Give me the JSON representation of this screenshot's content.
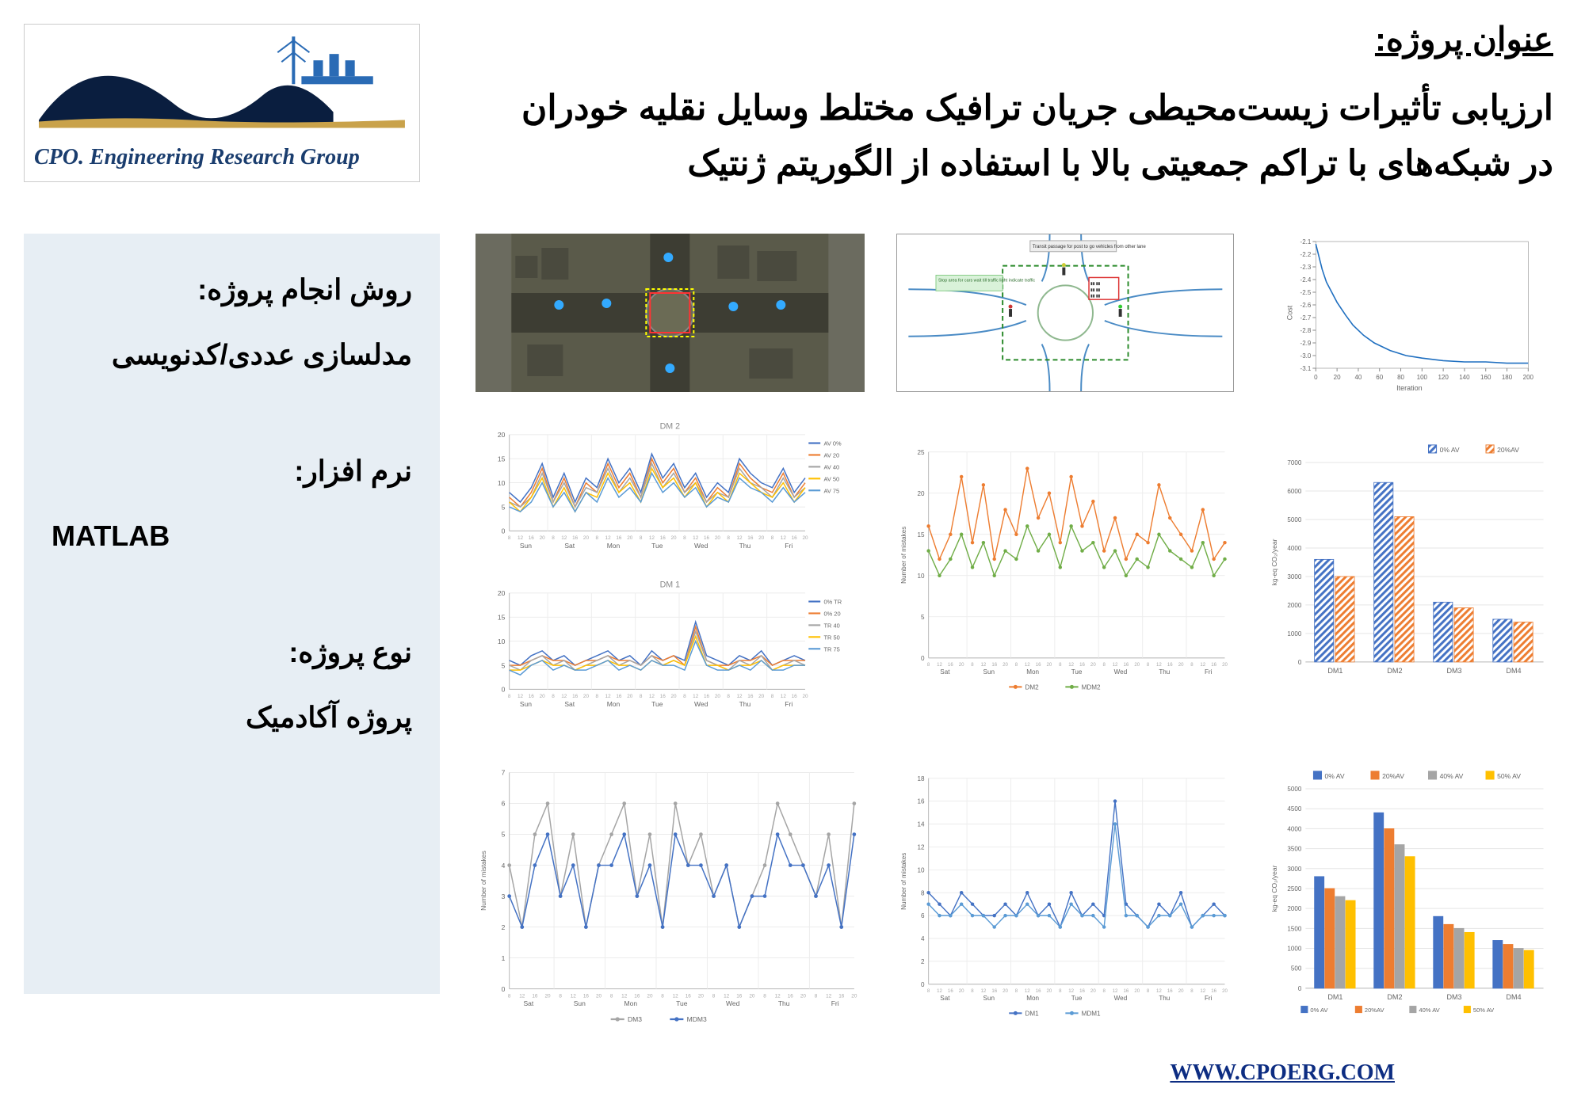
{
  "logo": {
    "text": "CPO. Engineering Research Group"
  },
  "header": {
    "label": "عنوان پروژه:",
    "line1": "ارزیابی تأثیرات زیست‌محیطی جریان ترافیک مختلط وسایل نقلیه خودران",
    "line2": "در شبکه‌های با تراکم جمعیتی بالا با استفاده از الگوریتم ژنتیک"
  },
  "sidebar": {
    "method_label": "روش انجام پروژه:",
    "method_value": "مدلسازی عددی/کدنویسی",
    "software_label": "نرم افزار:",
    "software_value": "MATLAB",
    "type_label": "نوع پروژه:",
    "type_value": "پروژه آکادمیک"
  },
  "footer": {
    "url": "WWW.CPOERG.COM"
  },
  "colors": {
    "sidebar_bg": "#e7eef4",
    "accent_blue": "#1a3d6e",
    "link_blue": "#0d2d82",
    "chart_blue": "#4472c4",
    "chart_orange": "#ed7d31",
    "chart_green": "#70ad47",
    "chart_gray": "#a5a5a5",
    "chart_yellow": "#ffc000",
    "chart_lightblue": "#5b9bd5",
    "grid": "#d9d9d9"
  },
  "cost_chart": {
    "xlim": [
      0,
      200
    ],
    "ylim": [
      -3.1,
      -2.1
    ],
    "xlabel": "Iteration",
    "ylabel": "Cost",
    "xticks": [
      0,
      20,
      40,
      60,
      80,
      100,
      120,
      140,
      160,
      180,
      200
    ],
    "yticks": [
      -3.1,
      -3.0,
      -2.9,
      -2.8,
      -2.7,
      -2.6,
      -2.5,
      -2.4,
      -2.3,
      -2.2,
      -2.1
    ],
    "curve_x": [
      0,
      3,
      6,
      10,
      15,
      20,
      28,
      35,
      45,
      55,
      70,
      85,
      100,
      120,
      140,
      160,
      180,
      200
    ],
    "curve_y": [
      -2.12,
      -2.22,
      -2.32,
      -2.42,
      -2.5,
      -2.58,
      -2.68,
      -2.76,
      -2.84,
      -2.9,
      -2.96,
      -3.0,
      -3.02,
      -3.04,
      -3.05,
      -3.05,
      -3.06,
      -3.06
    ],
    "line_color": "#1f6fc0"
  },
  "dm2_chart": {
    "title": "DM 2",
    "ylim": [
      0,
      20
    ],
    "series": [
      {
        "name": "AV 0%",
        "color": "#4472c4",
        "y": [
          8,
          6,
          9,
          14,
          7,
          12,
          6,
          11,
          9,
          15,
          10,
          13,
          8,
          16,
          11,
          14,
          9,
          12,
          7,
          10,
          8,
          15,
          12,
          10,
          9,
          13,
          8,
          11
        ]
      },
      {
        "name": "AV 20",
        "color": "#ed7d31",
        "y": [
          7,
          5,
          8,
          13,
          6,
          11,
          5,
          10,
          8,
          14,
          9,
          12,
          7,
          15,
          10,
          13,
          8,
          11,
          6,
          9,
          7,
          14,
          11,
          9,
          8,
          12,
          7,
          10
        ]
      },
      {
        "name": "AV 40",
        "color": "#a5a5a5",
        "y": [
          6,
          5,
          7,
          12,
          6,
          10,
          5,
          9,
          8,
          13,
          8,
          11,
          7,
          14,
          9,
          12,
          8,
          10,
          6,
          8,
          7,
          13,
          10,
          9,
          7,
          11,
          7,
          9
        ]
      },
      {
        "name": "AV 50",
        "color": "#ffc000",
        "y": [
          6,
          4,
          7,
          11,
          5,
          9,
          4,
          8,
          7,
          12,
          8,
          10,
          6,
          13,
          9,
          11,
          7,
          10,
          5,
          8,
          6,
          12,
          10,
          8,
          7,
          10,
          6,
          9
        ]
      },
      {
        "name": "AV 75",
        "color": "#5b9bd5",
        "y": [
          5,
          4,
          6,
          10,
          5,
          8,
          4,
          8,
          6,
          11,
          7,
          9,
          6,
          12,
          8,
          10,
          7,
          9,
          5,
          7,
          6,
          11,
          9,
          8,
          6,
          9,
          6,
          8
        ]
      }
    ],
    "xcats": [
      "Sun",
      "Sat",
      "Mon",
      "Tue",
      "Wed",
      "Thu",
      "Fri"
    ]
  },
  "dm1_chart": {
    "title": "DM 1",
    "ylim": [
      0,
      20
    ],
    "series": [
      {
        "name": "0% TR",
        "color": "#4472c4",
        "y": [
          6,
          5,
          7,
          8,
          6,
          7,
          5,
          6,
          7,
          8,
          6,
          7,
          5,
          8,
          6,
          7,
          6,
          14,
          7,
          6,
          5,
          7,
          6,
          8,
          5,
          6,
          7,
          6
        ]
      },
      {
        "name": "0% 20",
        "color": "#ed7d31",
        "y": [
          5,
          5,
          6,
          7,
          6,
          6,
          5,
          6,
          6,
          7,
          6,
          6,
          5,
          7,
          6,
          7,
          5,
          13,
          6,
          5,
          5,
          6,
          6,
          7,
          5,
          6,
          6,
          6
        ]
      },
      {
        "name": "TR 40",
        "color": "#a5a5a5",
        "y": [
          5,
          4,
          6,
          7,
          5,
          6,
          4,
          5,
          6,
          7,
          5,
          6,
          5,
          7,
          5,
          6,
          5,
          12,
          6,
          5,
          4,
          6,
          5,
          7,
          4,
          5,
          6,
          5
        ]
      },
      {
        "name": "TR 50",
        "color": "#ffc000",
        "y": [
          4,
          4,
          5,
          6,
          5,
          5,
          4,
          5,
          5,
          6,
          5,
          5,
          4,
          6,
          5,
          6,
          5,
          11,
          5,
          5,
          4,
          5,
          5,
          6,
          4,
          5,
          5,
          5
        ]
      },
      {
        "name": "TR 75",
        "color": "#5b9bd5",
        "y": [
          4,
          3,
          5,
          6,
          4,
          5,
          4,
          4,
          5,
          6,
          4,
          5,
          4,
          6,
          5,
          5,
          4,
          10,
          5,
          4,
          4,
          5,
          4,
          6,
          4,
          4,
          5,
          5
        ]
      }
    ]
  },
  "mistakes1": {
    "ylabel": "Number of mistakes",
    "ylim": [
      0,
      25
    ],
    "yticks": [
      0,
      5,
      10,
      15,
      20,
      25
    ],
    "series": [
      {
        "name": "DM2",
        "color": "#ed7d31",
        "y": [
          16,
          12,
          15,
          22,
          14,
          21,
          12,
          18,
          15,
          23,
          17,
          20,
          14,
          22,
          16,
          19,
          13,
          17,
          12,
          15,
          14,
          21,
          17,
          15,
          13,
          18,
          12,
          14
        ]
      },
      {
        "name": "MDM2",
        "color": "#70ad47",
        "y": [
          13,
          10,
          12,
          15,
          11,
          14,
          10,
          13,
          12,
          16,
          13,
          15,
          11,
          16,
          13,
          14,
          11,
          13,
          10,
          12,
          11,
          15,
          13,
          12,
          11,
          14,
          10,
          12
        ]
      }
    ],
    "xcats": [
      "Sat",
      "Sun",
      "Mon",
      "Tue",
      "Wed",
      "Thu",
      "Fri"
    ]
  },
  "bar1": {
    "ylabel": "kg-eq CO₂/year",
    "ylim": [
      0,
      7000
    ],
    "yticks": [
      0,
      1000,
      2000,
      3000,
      4000,
      5000,
      6000,
      7000
    ],
    "cats": [
      "DM1",
      "DM2",
      "DM3",
      "DM4"
    ],
    "series": [
      {
        "name": "0% AV",
        "color": "#4472c4",
        "y": [
          3600,
          6300,
          2100,
          1500
        ]
      },
      {
        "name": "20%AV",
        "color": "#ed7d31",
        "y": [
          3000,
          5100,
          1900,
          1400
        ]
      }
    ]
  },
  "mistakes2a": {
    "ylabel": "Number of mistakes",
    "ylim": [
      0,
      7
    ],
    "yticks": [
      0,
      1,
      2,
      3,
      4,
      5,
      6,
      7
    ],
    "series": [
      {
        "name": "DM3",
        "color": "#a5a5a5",
        "y": [
          4,
          2,
          5,
          6,
          3,
          5,
          2,
          4,
          5,
          6,
          3,
          5,
          2,
          6,
          4,
          5,
          3,
          4,
          2,
          3,
          4,
          6,
          5,
          4,
          3,
          5,
          2,
          6
        ]
      },
      {
        "name": "MDM3",
        "color": "#4472c4",
        "y": [
          3,
          2,
          4,
          5,
          3,
          4,
          2,
          4,
          4,
          5,
          3,
          4,
          2,
          5,
          4,
          4,
          3,
          4,
          2,
          3,
          3,
          5,
          4,
          4,
          3,
          4,
          2,
          5
        ]
      }
    ]
  },
  "mistakes2b": {
    "ylabel": "Number of mistakes",
    "ylim": [
      0,
      18
    ],
    "yticks": [
      0,
      2,
      4,
      6,
      8,
      10,
      12,
      14,
      16,
      18
    ],
    "series": [
      {
        "name": "DM1",
        "color": "#4472c4",
        "y": [
          8,
          7,
          6,
          8,
          7,
          6,
          6,
          7,
          6,
          8,
          6,
          7,
          5,
          8,
          6,
          7,
          6,
          16,
          7,
          6,
          5,
          7,
          6,
          8,
          5,
          6,
          7,
          6
        ]
      },
      {
        "name": "MDM1",
        "color": "#5b9bd5",
        "y": [
          7,
          6,
          6,
          7,
          6,
          6,
          5,
          6,
          6,
          7,
          6,
          6,
          5,
          7,
          6,
          6,
          5,
          14,
          6,
          6,
          5,
          6,
          6,
          7,
          5,
          6,
          6,
          6
        ]
      }
    ]
  },
  "bar2": {
    "ylabel": "kg-eq CO₂/year",
    "ylim": [
      0,
      5000
    ],
    "yticks": [
      0,
      500,
      1000,
      1500,
      2000,
      2500,
      3000,
      3500,
      4000,
      4500,
      5000
    ],
    "cats": [
      "DM1",
      "DM2",
      "DM3",
      "DM4"
    ],
    "series": [
      {
        "name": "0% AV",
        "color": "#4472c4",
        "y": [
          2800,
          4400,
          1800,
          1200
        ]
      },
      {
        "name": "20%AV",
        "color": "#ed7d31",
        "y": [
          2500,
          4000,
          1600,
          1100
        ]
      },
      {
        "name": "40% AV",
        "color": "#a5a5a5",
        "y": [
          2300,
          3600,
          1500,
          1000
        ]
      },
      {
        "name": "50% AV",
        "color": "#ffc000",
        "y": [
          2200,
          3300,
          1400,
          950
        ]
      }
    ]
  },
  "roundabout": {
    "note1": "Transit passage for post to go vehicles from other lane",
    "note2": "Stop area for cars wait till traffic light indicate traffic"
  }
}
